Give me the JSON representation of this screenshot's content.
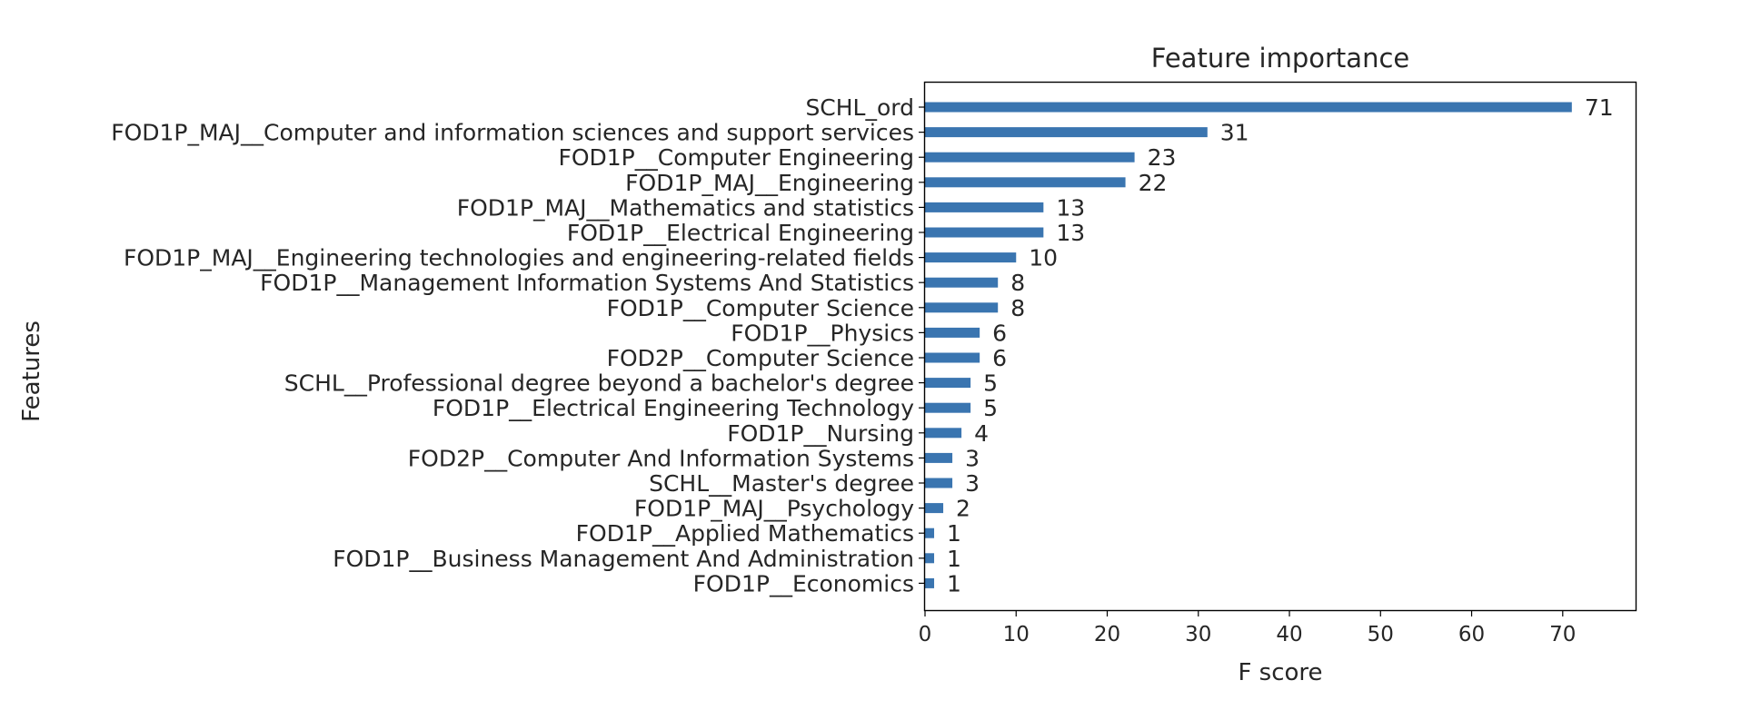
{
  "chart_data": {
    "type": "bar",
    "orientation": "horizontal",
    "title": "Feature importance",
    "xlabel": "F score",
    "ylabel": "Features",
    "categories": [
      "SCHL_ord",
      "FOD1P_MAJ__Computer and information sciences and support services",
      "FOD1P__Computer Engineering",
      "FOD1P_MAJ__Engineering",
      "FOD1P_MAJ__Mathematics and statistics",
      "FOD1P__Electrical Engineering",
      "FOD1P_MAJ__Engineering technologies and engineering-related fields",
      "FOD1P__Management Information Systems And Statistics",
      "FOD1P__Computer Science",
      "FOD1P__Physics",
      "FOD2P__Computer Science",
      "SCHL__Professional degree beyond a bachelor's degree",
      "FOD1P__Electrical Engineering Technology",
      "FOD1P__Nursing",
      "FOD2P__Computer And Information Systems",
      "SCHL__Master's degree",
      "FOD1P_MAJ__Psychology",
      "FOD1P__Applied Mathematics",
      "FOD1P__Business Management And Administration",
      "FOD1P__Economics"
    ],
    "values": [
      71,
      31,
      23,
      22,
      13,
      13,
      10,
      8,
      8,
      6,
      6,
      5,
      5,
      4,
      3,
      3,
      2,
      1,
      1,
      1
    ],
    "xticks": [
      0,
      10,
      20,
      30,
      40,
      50,
      60,
      70
    ],
    "xlim": [
      0,
      78
    ],
    "grid": false,
    "bar_color": "#3a75b0"
  }
}
